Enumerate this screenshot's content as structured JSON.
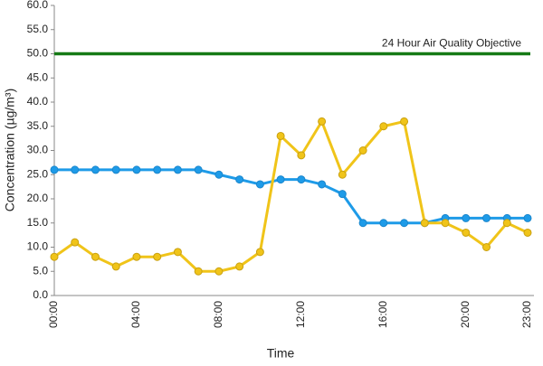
{
  "chart_data": {
    "type": "line",
    "x_label": "Time",
    "y_label": "Concentration (µg/m³)",
    "categories": [
      "00:00",
      null,
      null,
      null,
      "04:00",
      null,
      null,
      null,
      "08:00",
      null,
      null,
      null,
      "12:00",
      null,
      null,
      null,
      "16:00",
      null,
      null,
      null,
      "20:00",
      null,
      null,
      "23:00"
    ],
    "series": [
      {
        "color": "#1e9be8",
        "values": [
          26,
          26,
          26,
          26,
          26,
          26,
          26,
          26,
          25,
          24,
          23,
          24,
          24,
          23,
          21,
          15,
          15,
          15,
          15,
          16,
          16,
          16,
          16,
          16
        ]
      },
      {
        "color": "#f0c419",
        "values": [
          8,
          11,
          8,
          6,
          8,
          8,
          9,
          5,
          5,
          6,
          9,
          33,
          29,
          36,
          25,
          30,
          35,
          36,
          15,
          15,
          13,
          10,
          15,
          13
        ]
      }
    ],
    "reference_line": {
      "value": 50,
      "label": "24 Hour Air Quality Objective",
      "color": "#157a15"
    },
    "ylim": [
      0,
      60
    ],
    "yticks": [
      {
        "value": 0,
        "label": "0.0"
      },
      {
        "value": 5,
        "label": "5.0"
      },
      {
        "value": 10,
        "label": "10.0"
      },
      {
        "value": 15,
        "label": "15.0"
      },
      {
        "value": 20,
        "label": "20.0"
      },
      {
        "value": 25,
        "label": "25.0"
      },
      {
        "value": 30,
        "label": "30.0"
      },
      {
        "value": 35,
        "label": "35.0"
      },
      {
        "value": 40,
        "label": "40.0"
      },
      {
        "value": 45,
        "label": "45.0"
      },
      {
        "value": 50,
        "label": "50.0"
      },
      {
        "value": 55,
        "label": "55.0"
      },
      {
        "value": 60,
        "label": "60.0"
      }
    ],
    "grid": false
  }
}
